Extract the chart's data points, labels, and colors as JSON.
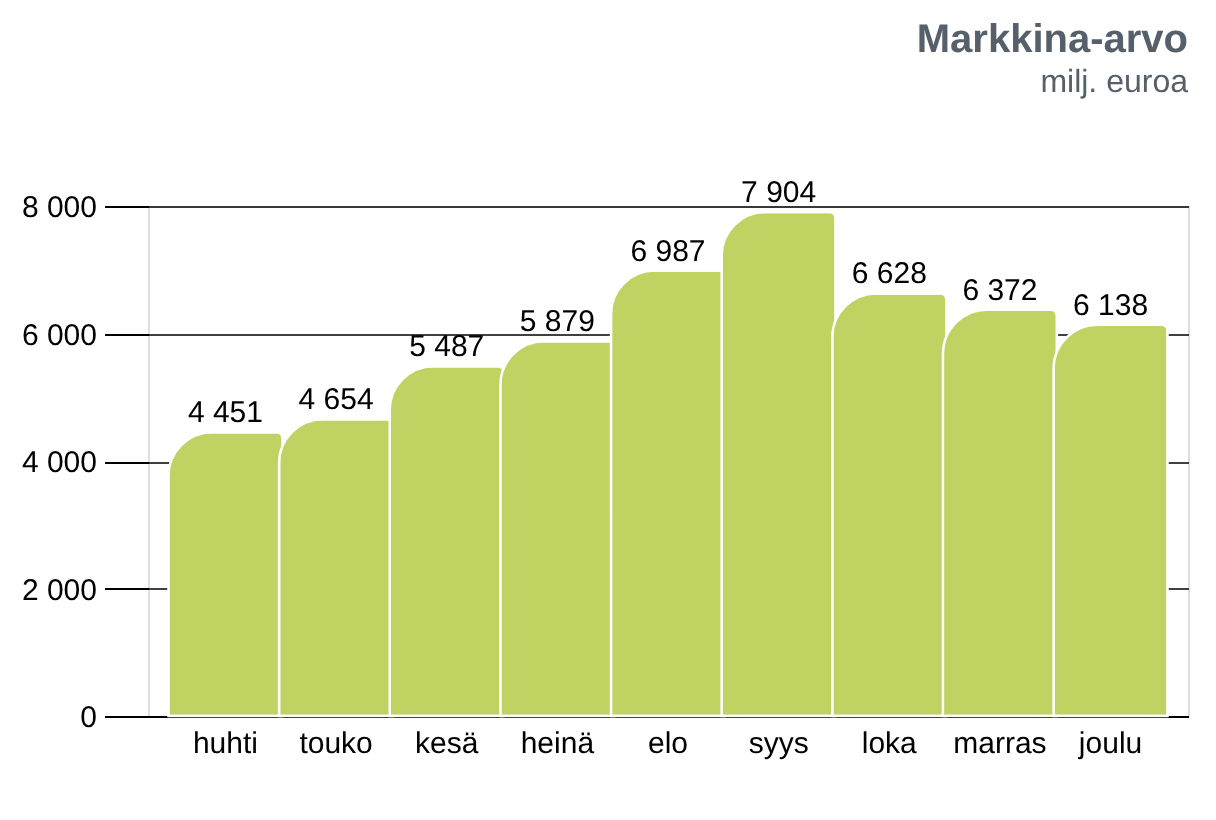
{
  "chart_data": {
    "type": "bar",
    "title": "Markkina-arvo",
    "subtitle": "milj. euroa",
    "categories": [
      "huhti",
      "touko",
      "kesä",
      "heinä",
      "elo",
      "syys",
      "loka",
      "marras",
      "joulu"
    ],
    "values": [
      4451,
      4654,
      5487,
      5879,
      6987,
      7904,
      6628,
      6372,
      6138
    ],
    "value_labels": [
      "4 451",
      "4 654",
      "5 487",
      "5 879",
      "6 987",
      "7 904",
      "6 628",
      "6 372",
      "6 138"
    ],
    "color": "#bfd262",
    "ylim": [
      0,
      8000
    ],
    "yticks": [
      {
        "value": 0,
        "label": "0"
      },
      {
        "value": 2000,
        "label": "2 000"
      },
      {
        "value": 4000,
        "label": "4 000"
      },
      {
        "value": 6000,
        "label": "6 000"
      },
      {
        "value": 8000,
        "label": "8 000"
      }
    ],
    "grid": "y"
  }
}
